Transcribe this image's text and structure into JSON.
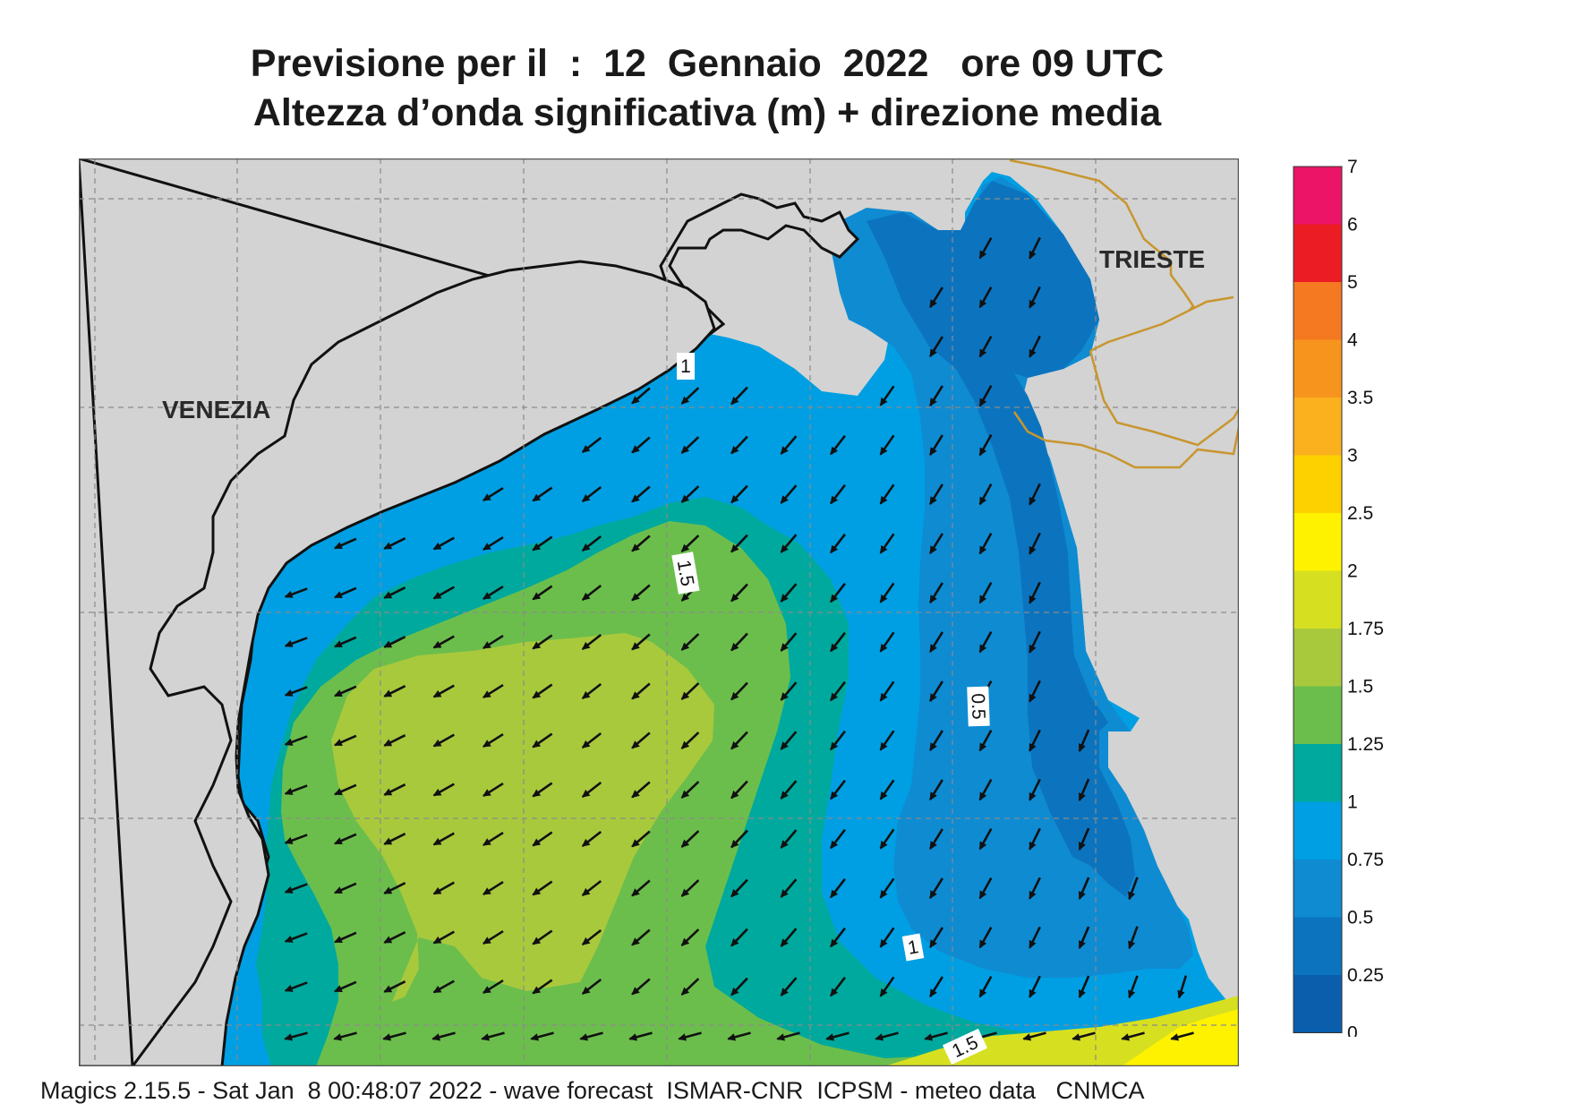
{
  "header": {
    "title_line1": "Previsione per il  :  12  Gennaio  2022   ore 09 UTC",
    "title_line2": "Altezza d’onda significativa (m) + direzione media"
  },
  "map": {
    "cities": [
      {
        "name": "VENEZIA"
      },
      {
        "name": "TRIESTE"
      }
    ],
    "contour_labels": [
      "1",
      "1.5",
      "0.5",
      "1",
      "1.5"
    ],
    "land_color": "#d3d3d3",
    "coast_color": "#111111",
    "border_color": "#c8962e",
    "arrow_direction": "towards south-west (from north-east)"
  },
  "legend": {
    "ticks": [
      "7",
      "6",
      "5",
      "4",
      "3.5",
      "3",
      "2.5",
      "2",
      "1.75",
      "1.5",
      "1.25",
      "1",
      "0.75",
      "0.5",
      "0.25",
      "0"
    ],
    "colors": [
      "#ec1466",
      "#ec1c24",
      "#f47920",
      "#f7941d",
      "#fbb11e",
      "#fdd000",
      "#fff200",
      "#d6e021",
      "#a9c93d",
      "#6cbe4c",
      "#00a99d",
      "#009fe3",
      "#0f8bd2",
      "#0c74bf",
      "#0a5eac"
    ]
  },
  "footer": {
    "text": "Magics 2.15.5 - Sat Jan  8 00:48:07 2022 - wave forecast  ISMAR-CNR  ICPSM - meteo data   CNMCA"
  }
}
